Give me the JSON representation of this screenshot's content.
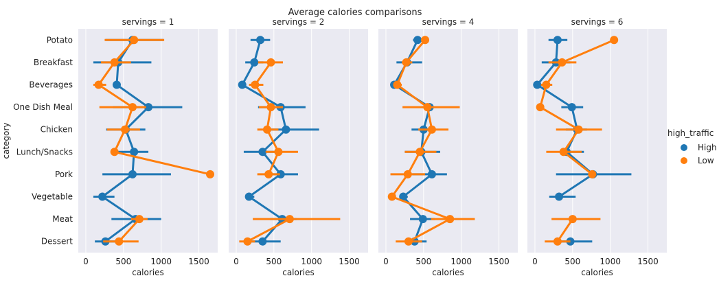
{
  "chart_data": {
    "type": "point",
    "title": "Average calories comparisons",
    "ylabel": "category",
    "xlabel": "calories",
    "xlim": [
      -100,
      1750
    ],
    "xticks": [
      0,
      500,
      1000,
      1500
    ],
    "grid": true,
    "categories": [
      "Potato",
      "Breakfast",
      "Beverages",
      "One Dish Meal",
      "Chicken",
      "Lunch/Snacks",
      "Pork",
      "Vegetable",
      "Meat",
      "Dessert"
    ],
    "legend": {
      "title": "high_traffic",
      "position": "right",
      "items": [
        {
          "label": "High",
          "color": "#1f77b4"
        },
        {
          "label": "Low",
          "color": "#ff7f0e"
        }
      ]
    },
    "panels": [
      {
        "title": "servings = 1",
        "series": [
          {
            "name": "High",
            "color": "#1f77b4",
            "values": [
              620,
              430,
              410,
              830,
              530,
              640,
              620,
              220,
              660,
              260
            ],
            "ci": [
              [
                260,
                1030
              ],
              [
                100,
                870
              ],
              [
                0,
                0
              ],
              [
                360,
                1280
              ],
              [
                270,
                790
              ],
              [
                420,
                830
              ],
              [
                220,
                1130
              ],
              [
                100,
                380
              ],
              [
                340,
                1000
              ],
              [
                120,
                420
              ]
            ]
          },
          {
            "name": "Low",
            "color": "#ff7f0e",
            "values": [
              640,
              380,
              170,
              620,
              520,
              380,
              1650,
              null,
              710,
              440
            ],
            "ci": [
              [
                250,
                1040
              ],
              [
                200,
                600
              ],
              [
                100,
                270
              ],
              [
                180,
                800
              ],
              [
                280,
                720
              ],
              [
                340,
                420
              ],
              [
                1640,
                1660
              ],
              null,
              [
                600,
                820
              ],
              [
                230,
                700
              ]
            ]
          }
        ]
      },
      {
        "title": "servings = 2",
        "series": [
          {
            "name": "High",
            "color": "#1f77b4",
            "values": [
              320,
              240,
              80,
              590,
              660,
              350,
              590,
              170,
              610,
              350
            ],
            "ci": [
              [
                190,
                450
              ],
              [
                120,
                360
              ],
              [
                0,
                0
              ],
              [
                290,
                920
              ],
              [
                360,
                1100
              ],
              [
                100,
                600
              ],
              [
                380,
                820
              ],
              [
                120,
                240
              ],
              [
                450,
                800
              ],
              [
                170,
                590
              ]
            ]
          },
          {
            "name": "Low",
            "color": "#ff7f0e",
            "values": [
              null,
              460,
              250,
              460,
              410,
              560,
              430,
              null,
              710,
              150
            ],
            "ci": [
              null,
              [
                290,
                620
              ],
              [
                170,
                360
              ],
              [
                300,
                620
              ],
              [
                280,
                560
              ],
              [
                390,
                820
              ],
              [
                280,
                580
              ],
              null,
              [
                220,
                1380
              ],
              [
                40,
                250
              ]
            ]
          }
        ]
      },
      {
        "title": "servings = 4",
        "series": [
          {
            "name": "High",
            "color": "#1f77b4",
            "values": [
              420,
              280,
              110,
              580,
              500,
              470,
              610,
              230,
              490,
              380
            ],
            "ci": [
              [
                360,
                480
              ],
              [
                140,
                480
              ],
              [
                0,
                0
              ],
              [
                480,
                640
              ],
              [
                340,
                640
              ],
              [
                250,
                720
              ],
              [
                350,
                810
              ],
              [
                180,
                290
              ],
              [
                320,
                650
              ],
              [
                330,
                540
              ]
            ]
          },
          {
            "name": "Low",
            "color": "#ff7f0e",
            "values": [
              520,
              270,
              150,
              550,
              610,
              450,
              290,
              80,
              850,
              300
            ],
            "ci": [
              [
                500,
                540
              ],
              [
                210,
                350
              ],
              [
                100,
                210
              ],
              [
                220,
                980
              ],
              [
                430,
                830
              ],
              [
                250,
                670
              ],
              [
                60,
                520
              ],
              [
                60,
                110
              ],
              [
                600,
                1180
              ],
              [
                130,
                480
              ]
            ]
          }
        ]
      },
      {
        "title": "servings = 6",
        "series": [
          {
            "name": "High",
            "color": "#1f77b4",
            "values": [
              300,
              280,
              30,
              490,
              560,
              420,
              770,
              320,
              null,
              470
            ],
            "ci": [
              [
                180,
                430
              ],
              [
                90,
                470
              ],
              [
                0,
                0
              ],
              [
                350,
                640
              ],
              [
                410,
                690
              ],
              [
                340,
                650
              ],
              [
                280,
                1280
              ],
              [
                190,
                540
              ],
              null,
              [
                350,
                760
              ]
            ]
          },
          {
            "name": "Low",
            "color": "#ff7f0e",
            "values": [
              1050,
              360,
              150,
              70,
              580,
              380,
              760,
              null,
              500,
              300
            ],
            "ci": [
              [
                1040,
                1060
              ],
              [
                180,
                550
              ],
              [
                80,
                230
              ],
              [
                50,
                90
              ],
              [
                280,
                890
              ],
              [
                150,
                620
              ],
              [
                740,
                780
              ],
              null,
              [
                220,
                870
              ],
              [
                130,
                470
              ]
            ]
          }
        ]
      }
    ]
  }
}
